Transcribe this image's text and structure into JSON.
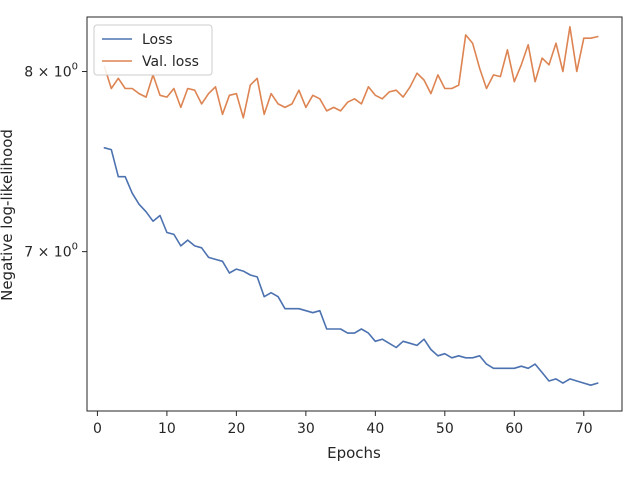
{
  "chart_data": {
    "type": "line",
    "xlabel": "Epochs",
    "ylabel": "Negative log-likelihood",
    "xlim": [
      -1.5,
      75.5
    ],
    "ylim": [
      6.22,
      8.33
    ],
    "yscale": "log",
    "grid": false,
    "legend_position": "top-left",
    "x_ticks": [
      0,
      10,
      20,
      30,
      40,
      50,
      60,
      70
    ],
    "x_tick_labels": [
      "0",
      "10",
      "20",
      "30",
      "40",
      "50",
      "60",
      "70"
    ],
    "y_ticks": [
      {
        "value": 7,
        "base": "7",
        "exp": "0"
      },
      {
        "value": 8,
        "base": "8",
        "exp": "0"
      }
    ],
    "y_tick_prefix": "× 10",
    "x": [
      1,
      2,
      3,
      4,
      5,
      6,
      7,
      8,
      9,
      10,
      11,
      12,
      13,
      14,
      15,
      16,
      17,
      18,
      19,
      20,
      21,
      22,
      23,
      24,
      25,
      26,
      27,
      28,
      29,
      30,
      31,
      32,
      33,
      34,
      35,
      36,
      37,
      38,
      39,
      40,
      41,
      42,
      43,
      44,
      45,
      46,
      47,
      48,
      49,
      50,
      51,
      52,
      53,
      54,
      55,
      56,
      57,
      58,
      59,
      60,
      61,
      62,
      63,
      64,
      65,
      66,
      67,
      68,
      69,
      70,
      71,
      72
    ],
    "series": [
      {
        "name": "Loss",
        "color": "#4c72b0",
        "values": [
          7.56,
          7.55,
          7.4,
          7.4,
          7.31,
          7.25,
          7.21,
          7.16,
          7.19,
          7.1,
          7.09,
          7.03,
          7.06,
          7.03,
          7.02,
          6.97,
          6.96,
          6.95,
          6.89,
          6.91,
          6.9,
          6.88,
          6.87,
          6.77,
          6.79,
          6.77,
          6.71,
          6.71,
          6.71,
          6.7,
          6.69,
          6.7,
          6.61,
          6.61,
          6.61,
          6.59,
          6.59,
          6.61,
          6.59,
          6.55,
          6.56,
          6.54,
          6.52,
          6.55,
          6.54,
          6.53,
          6.56,
          6.51,
          6.48,
          6.49,
          6.47,
          6.48,
          6.47,
          6.47,
          6.48,
          6.44,
          6.42,
          6.42,
          6.42,
          6.42,
          6.43,
          6.42,
          6.44,
          6.4,
          6.36,
          6.37,
          6.35,
          6.37,
          6.36,
          6.35,
          6.34,
          6.35
        ]
      },
      {
        "name": "Val. loss",
        "color": "#dd8452",
        "values": [
          8.03,
          7.9,
          7.96,
          7.9,
          7.9,
          7.87,
          7.85,
          7.98,
          7.86,
          7.85,
          7.9,
          7.79,
          7.9,
          7.89,
          7.81,
          7.87,
          7.91,
          7.75,
          7.86,
          7.87,
          7.73,
          7.92,
          7.96,
          7.75,
          7.87,
          7.81,
          7.79,
          7.81,
          7.89,
          7.79,
          7.86,
          7.84,
          7.77,
          7.79,
          7.77,
          7.82,
          7.84,
          7.81,
          7.91,
          7.86,
          7.84,
          7.88,
          7.89,
          7.85,
          7.91,
          7.99,
          7.95,
          7.87,
          7.98,
          7.9,
          7.9,
          7.92,
          8.22,
          8.17,
          8.02,
          7.9,
          7.98,
          7.97,
          8.13,
          7.94,
          8.04,
          8.16,
          7.94,
          8.08,
          8.04,
          8.17,
          8.0,
          8.27,
          8.0,
          8.2,
          8.2,
          8.21
        ]
      }
    ]
  }
}
